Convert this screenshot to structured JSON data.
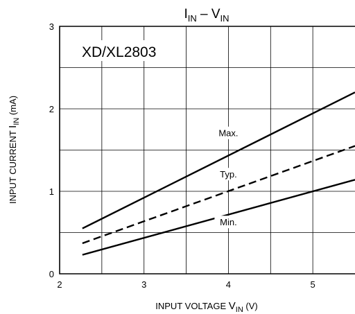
{
  "chart_data": {
    "type": "line",
    "title": {
      "main": "I",
      "main_sub": "IN",
      "sep": "–",
      "var": "V",
      "var_sub": "IN"
    },
    "inset_label": "XD/XL2803",
    "xlabel": {
      "main": "INPUT VOLTAGE",
      "var": "V",
      "var_sub": "IN",
      "unit": "(V)"
    },
    "ylabel": {
      "main": "INPUT CURRENT",
      "var": "I",
      "var_sub": "IN",
      "unit": "(mA)"
    },
    "xlim": [
      2,
      5.5
    ],
    "ylim": [
      0,
      3
    ],
    "x_ticks": [
      "2",
      "3",
      "4",
      "5"
    ],
    "y_ticks": [
      "0",
      "1",
      "2",
      "3"
    ],
    "x_tick_values": [
      2,
      3,
      4,
      5
    ],
    "y_tick_values": [
      0,
      1,
      2,
      3
    ],
    "x_grid": [
      2.5,
      3,
      3.5,
      4,
      4.5,
      5
    ],
    "y_grid": [
      0.5,
      1,
      1.5,
      2,
      2.5
    ],
    "grid": true,
    "series": [
      {
        "name": "Max.",
        "style": "solid",
        "x": [
          2.27,
          5.5
        ],
        "y": [
          0.55,
          2.2
        ]
      },
      {
        "name": "Typ.",
        "style": "dashed",
        "x": [
          2.27,
          5.5
        ],
        "y": [
          0.37,
          1.55
        ]
      },
      {
        "name": "Min.",
        "style": "solid",
        "x": [
          2.27,
          5.5
        ],
        "y": [
          0.23,
          1.14
        ]
      }
    ],
    "series_labels": [
      {
        "name": "Max.",
        "x": 4.0,
        "y": 1.7
      },
      {
        "name": "Typ.",
        "x": 4.0,
        "y": 1.2
      },
      {
        "name": "Min.",
        "x": 4.0,
        "y": 0.62
      }
    ]
  }
}
